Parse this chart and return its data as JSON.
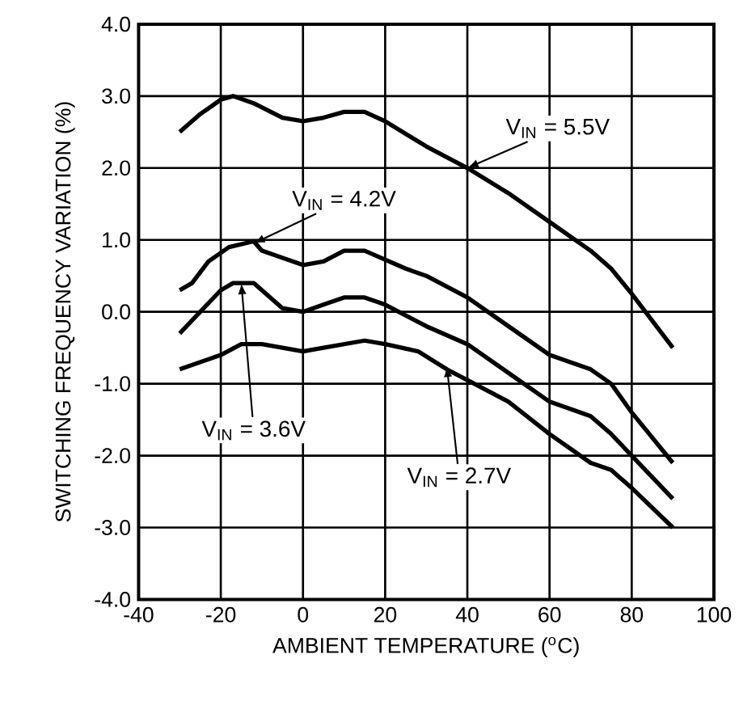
{
  "chart_data": {
    "type": "line",
    "xlabel": "AMBIENT TEMPERATURE ($^{o}$C)",
    "ylabel": "SWITCHING FREQUENCY VARIATION (%)",
    "xlim": [
      -40,
      100
    ],
    "ylim": [
      -4,
      4
    ],
    "xticks": [
      -40,
      -20,
      0,
      20,
      40,
      60,
      80,
      100
    ],
    "yticks": [
      {
        "value": -4,
        "label": "-4.0"
      },
      {
        "value": -3,
        "label": "-3.0"
      },
      {
        "value": -2,
        "label": "-2.0"
      },
      {
        "value": -1,
        "label": "-1.0"
      },
      {
        "value": 0,
        "label": "0.0"
      },
      {
        "value": 1,
        "label": "1.0"
      },
      {
        "value": 2,
        "label": "2.0"
      },
      {
        "value": 3,
        "label": "3.0"
      },
      {
        "value": 4,
        "label": "4.0"
      }
    ],
    "grid": true,
    "marker": "none",
    "line_style": "solid",
    "series": [
      {
        "color": "#000000",
        "x": [
          -30,
          -25,
          -20,
          -17,
          -12,
          -5,
          0,
          5,
          10,
          15,
          20,
          30,
          40,
          50,
          60,
          70,
          75,
          80,
          90
        ],
        "values": [
          2.5,
          2.75,
          2.95,
          3.0,
          2.9,
          2.7,
          2.65,
          2.7,
          2.78,
          2.78,
          2.65,
          2.3,
          2.0,
          1.65,
          1.25,
          0.85,
          0.6,
          0.25,
          -0.5
        ]
      },
      {
        "color": "#000000",
        "x": [
          -30,
          -27,
          -23,
          -18,
          -12,
          -10,
          0,
          5,
          10,
          15,
          25,
          30,
          40,
          50,
          60,
          70,
          75,
          80,
          90
        ],
        "values": [
          0.3,
          0.4,
          0.7,
          0.9,
          0.98,
          0.85,
          0.65,
          0.7,
          0.85,
          0.85,
          0.6,
          0.5,
          0.2,
          -0.2,
          -0.6,
          -0.8,
          -1.0,
          -1.4,
          -2.1
        ]
      },
      {
        "color": "#000000",
        "x": [
          -30,
          -25,
          -20,
          -17,
          -12,
          -5,
          0,
          5,
          10,
          15,
          20,
          30,
          40,
          50,
          60,
          70,
          75,
          80,
          90
        ],
        "values": [
          -0.3,
          0.0,
          0.3,
          0.4,
          0.4,
          0.05,
          0.0,
          0.1,
          0.2,
          0.2,
          0.1,
          -0.2,
          -0.45,
          -0.85,
          -1.25,
          -1.45,
          -1.7,
          -2.0,
          -2.6
        ]
      },
      {
        "color": "#000000",
        "x": [
          -30,
          -20,
          -15,
          -10,
          0,
          5,
          15,
          20,
          28,
          35,
          40,
          50,
          60,
          70,
          75,
          80,
          90
        ],
        "values": [
          -0.8,
          -0.6,
          -0.45,
          -0.45,
          -0.55,
          -0.5,
          -0.4,
          -0.45,
          -0.55,
          -0.8,
          -0.95,
          -1.25,
          -1.7,
          -2.1,
          -2.2,
          -2.45,
          -3.0
        ]
      }
    ],
    "annotations": [
      {
        "text": "V$_{IN}$ = 5.5V",
        "x": 40,
        "y": 2.0
      },
      {
        "text": "V$_{IN}$ = 4.2V",
        "x": -12,
        "y": 0.95
      },
      {
        "text": "V$_{IN}$ = 3.6V",
        "x": -15,
        "y": 0.4
      },
      {
        "text": "V$_{IN}$ = 2.7V",
        "x": 35,
        "y": -0.75
      }
    ]
  }
}
